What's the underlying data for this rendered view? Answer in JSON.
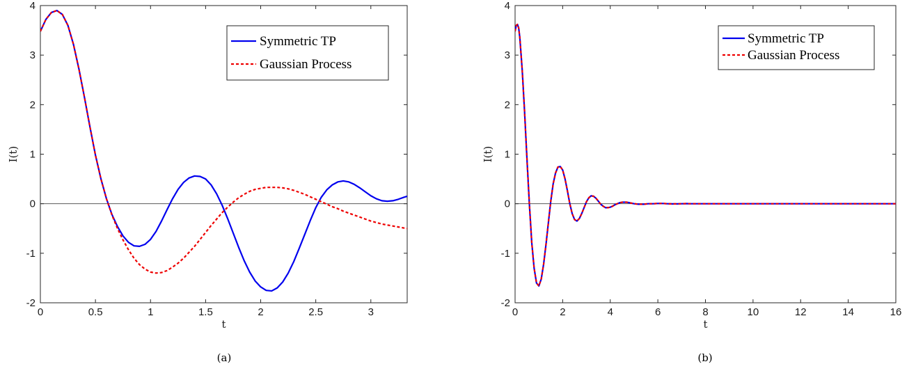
{
  "chart_data": [
    {
      "type": "line",
      "caption": "(a)",
      "xlabel": "t",
      "ylabel": "I(t)",
      "xlim": [
        0,
        3.33
      ],
      "ylim": [
        -2,
        4
      ],
      "xticks": [
        0,
        0.5,
        1,
        1.5,
        2,
        2.5,
        3
      ],
      "xtick_labels": [
        "0",
        "0.5",
        "1",
        "1.5",
        "2",
        "2.5",
        "3"
      ],
      "yticks": [
        -2,
        -1,
        0,
        1,
        2,
        3,
        4
      ],
      "ytick_labels": [
        "-2",
        "-1",
        "0",
        "1",
        "2",
        "3",
        "4"
      ],
      "grid": false,
      "zero_line": true,
      "legend": {
        "position": "top-right"
      },
      "series": [
        {
          "name": "Symmetric TP",
          "color": "#0000ee",
          "style": "solid",
          "x": [
            0,
            0.05,
            0.1,
            0.15,
            0.2,
            0.25,
            0.3,
            0.35,
            0.4,
            0.45,
            0.5,
            0.55,
            0.6,
            0.65,
            0.7,
            0.75,
            0.8,
            0.85,
            0.9,
            0.95,
            1.0,
            1.05,
            1.1,
            1.15,
            1.2,
            1.25,
            1.3,
            1.35,
            1.4,
            1.45,
            1.5,
            1.55,
            1.6,
            1.65,
            1.7,
            1.75,
            1.8,
            1.85,
            1.9,
            1.95,
            2.0,
            2.05,
            2.1,
            2.15,
            2.2,
            2.25,
            2.3,
            2.35,
            2.4,
            2.45,
            2.5,
            2.55,
            2.6,
            2.65,
            2.7,
            2.75,
            2.8,
            2.85,
            2.9,
            2.95,
            3.0,
            3.05,
            3.1,
            3.15,
            3.2,
            3.25,
            3.3,
            3.33
          ],
          "y": [
            3.48,
            3.72,
            3.86,
            3.9,
            3.82,
            3.6,
            3.22,
            2.72,
            2.15,
            1.55,
            0.98,
            0.5,
            0.1,
            -0.22,
            -0.46,
            -0.65,
            -0.78,
            -0.85,
            -0.86,
            -0.82,
            -0.72,
            -0.56,
            -0.35,
            -0.12,
            0.1,
            0.29,
            0.43,
            0.52,
            0.56,
            0.55,
            0.5,
            0.38,
            0.2,
            -0.03,
            -0.3,
            -0.59,
            -0.88,
            -1.15,
            -1.38,
            -1.56,
            -1.68,
            -1.75,
            -1.76,
            -1.7,
            -1.58,
            -1.4,
            -1.17,
            -0.9,
            -0.62,
            -0.34,
            -0.08,
            0.13,
            0.28,
            0.38,
            0.44,
            0.46,
            0.44,
            0.39,
            0.32,
            0.24,
            0.16,
            0.1,
            0.06,
            0.05,
            0.06,
            0.09,
            0.13,
            0.15
          ]
        },
        {
          "name": "Gaussian Process",
          "color": "#ee0000",
          "style": "dashed",
          "x": [
            0,
            0.05,
            0.1,
            0.15,
            0.2,
            0.25,
            0.3,
            0.35,
            0.4,
            0.45,
            0.5,
            0.55,
            0.6,
            0.65,
            0.7,
            0.75,
            0.8,
            0.85,
            0.9,
            0.95,
            1.0,
            1.05,
            1.1,
            1.15,
            1.2,
            1.25,
            1.3,
            1.35,
            1.4,
            1.45,
            1.5,
            1.55,
            1.6,
            1.65,
            1.7,
            1.75,
            1.8,
            1.85,
            1.9,
            1.95,
            2.0,
            2.05,
            2.1,
            2.15,
            2.2,
            2.25,
            2.3,
            2.35,
            2.4,
            2.45,
            2.5,
            2.55,
            2.6,
            2.65,
            2.7,
            2.75,
            2.8,
            2.85,
            2.9,
            2.95,
            3.0,
            3.05,
            3.1,
            3.15,
            3.2,
            3.25,
            3.3,
            3.33
          ],
          "y": [
            3.48,
            3.72,
            3.86,
            3.9,
            3.82,
            3.6,
            3.22,
            2.72,
            2.15,
            1.55,
            0.98,
            0.5,
            0.1,
            -0.23,
            -0.5,
            -0.73,
            -0.93,
            -1.1,
            -1.23,
            -1.32,
            -1.38,
            -1.4,
            -1.39,
            -1.35,
            -1.28,
            -1.2,
            -1.1,
            -0.98,
            -0.86,
            -0.72,
            -0.58,
            -0.44,
            -0.31,
            -0.18,
            -0.07,
            0.03,
            0.12,
            0.19,
            0.25,
            0.29,
            0.31,
            0.33,
            0.33,
            0.33,
            0.32,
            0.3,
            0.27,
            0.23,
            0.19,
            0.14,
            0.09,
            0.04,
            -0.01,
            -0.06,
            -0.1,
            -0.15,
            -0.19,
            -0.23,
            -0.27,
            -0.31,
            -0.35,
            -0.38,
            -0.41,
            -0.43,
            -0.45,
            -0.47,
            -0.49,
            -0.5
          ]
        }
      ]
    },
    {
      "type": "line",
      "caption": "(b)",
      "xlabel": "t",
      "ylabel": "I(t)",
      "xlim": [
        0,
        16
      ],
      "ylim": [
        -2,
        4
      ],
      "xticks": [
        0,
        2,
        4,
        6,
        8,
        10,
        12,
        14,
        16
      ],
      "xtick_labels": [
        "0",
        "2",
        "4",
        "6",
        "8",
        "10",
        "12",
        "14",
        "16"
      ],
      "yticks": [
        -2,
        -1,
        0,
        1,
        2,
        3,
        4
      ],
      "ytick_labels": [
        "-2",
        "-1",
        "0",
        "1",
        "2",
        "3",
        "4"
      ],
      "grid": false,
      "zero_line": true,
      "legend": {
        "position": "top-right"
      },
      "series": [
        {
          "name": "Symmetric TP",
          "color": "#0000ee",
          "style": "solid",
          "x": [
            0,
            0.05,
            0.1,
            0.15,
            0.2,
            0.3,
            0.4,
            0.5,
            0.6,
            0.7,
            0.8,
            0.9,
            1.0,
            1.1,
            1.2,
            1.3,
            1.4,
            1.5,
            1.6,
            1.7,
            1.8,
            1.9,
            2.0,
            2.1,
            2.2,
            2.3,
            2.4,
            2.5,
            2.6,
            2.7,
            2.8,
            2.9,
            3.0,
            3.1,
            3.2,
            3.3,
            3.4,
            3.5,
            3.6,
            3.7,
            3.8,
            3.9,
            4.0,
            4.1,
            4.2,
            4.3,
            4.4,
            4.5,
            4.6,
            4.7,
            4.8,
            4.9,
            5.0,
            5.2,
            5.4,
            5.6,
            5.8,
            6.0,
            6.2,
            6.4,
            6.6,
            6.8,
            7.0,
            7.2,
            7.4,
            7.6,
            7.8,
            8.0,
            8.2,
            8.4,
            8.6,
            8.8,
            9.0,
            9.5,
            10.0,
            11.0,
            12.0,
            13.0,
            14.0,
            15.0,
            16.0
          ],
          "y": [
            3.48,
            3.6,
            3.62,
            3.55,
            3.35,
            2.7,
            1.85,
            0.9,
            0.0,
            -0.78,
            -1.3,
            -1.6,
            -1.66,
            -1.52,
            -1.22,
            -0.82,
            -0.38,
            0.05,
            0.4,
            0.62,
            0.74,
            0.75,
            0.68,
            0.5,
            0.26,
            0.0,
            -0.2,
            -0.32,
            -0.35,
            -0.3,
            -0.2,
            -0.08,
            0.04,
            0.12,
            0.16,
            0.15,
            0.11,
            0.05,
            -0.01,
            -0.05,
            -0.08,
            -0.08,
            -0.07,
            -0.05,
            -0.02,
            0.0,
            0.02,
            0.03,
            0.03,
            0.03,
            0.02,
            0.01,
            0.0,
            -0.01,
            -0.01,
            0.0,
            0.0,
            0.005,
            0.005,
            0.0,
            -0.003,
            -0.003,
            0.0,
            0.002,
            0.0,
            0.0,
            0.0,
            0.0,
            0.0,
            0.0,
            0.0,
            0.0,
            0.0,
            0.0,
            0.0,
            0.0,
            0.0,
            0.0,
            0.0,
            0.0,
            0.0
          ]
        },
        {
          "name": "Gaussian Process",
          "color": "#ee0000",
          "style": "dashed",
          "x": [
            0,
            0.05,
            0.1,
            0.15,
            0.2,
            0.3,
            0.4,
            0.5,
            0.6,
            0.7,
            0.8,
            0.9,
            1.0,
            1.1,
            1.2,
            1.3,
            1.4,
            1.5,
            1.6,
            1.7,
            1.8,
            1.9,
            2.0,
            2.1,
            2.2,
            2.3,
            2.4,
            2.5,
            2.6,
            2.7,
            2.8,
            2.9,
            3.0,
            3.1,
            3.2,
            3.3,
            3.4,
            3.5,
            3.6,
            3.7,
            3.8,
            3.9,
            4.0,
            4.1,
            4.2,
            4.3,
            4.4,
            4.5,
            4.6,
            4.7,
            4.8,
            4.9,
            5.0,
            5.2,
            5.4,
            5.6,
            5.8,
            6.0,
            6.2,
            6.4,
            6.6,
            6.8,
            7.0,
            7.2,
            7.4,
            7.6,
            7.8,
            8.0,
            8.2,
            8.4,
            8.6,
            8.8,
            9.0,
            9.5,
            10.0,
            11.0,
            12.0,
            13.0,
            14.0,
            15.0,
            16.0
          ],
          "y": [
            3.48,
            3.6,
            3.62,
            3.55,
            3.35,
            2.7,
            1.85,
            0.9,
            0.0,
            -0.78,
            -1.3,
            -1.6,
            -1.66,
            -1.52,
            -1.22,
            -0.82,
            -0.38,
            0.05,
            0.4,
            0.62,
            0.74,
            0.75,
            0.68,
            0.5,
            0.26,
            0.0,
            -0.2,
            -0.32,
            -0.35,
            -0.3,
            -0.2,
            -0.08,
            0.04,
            0.12,
            0.16,
            0.15,
            0.11,
            0.05,
            -0.01,
            -0.05,
            -0.08,
            -0.08,
            -0.07,
            -0.05,
            -0.02,
            0.0,
            0.02,
            0.03,
            0.03,
            0.03,
            0.02,
            0.01,
            0.0,
            -0.01,
            -0.01,
            0.0,
            0.0,
            0.005,
            0.005,
            0.0,
            -0.003,
            -0.003,
            0.0,
            0.002,
            0.0,
            0.0,
            0.0,
            0.0,
            0.0,
            0.0,
            0.0,
            0.0,
            0.0,
            0.0,
            0.0,
            0.0,
            0.0,
            0.0,
            0.0,
            0.0,
            0.0
          ]
        }
      ]
    }
  ]
}
